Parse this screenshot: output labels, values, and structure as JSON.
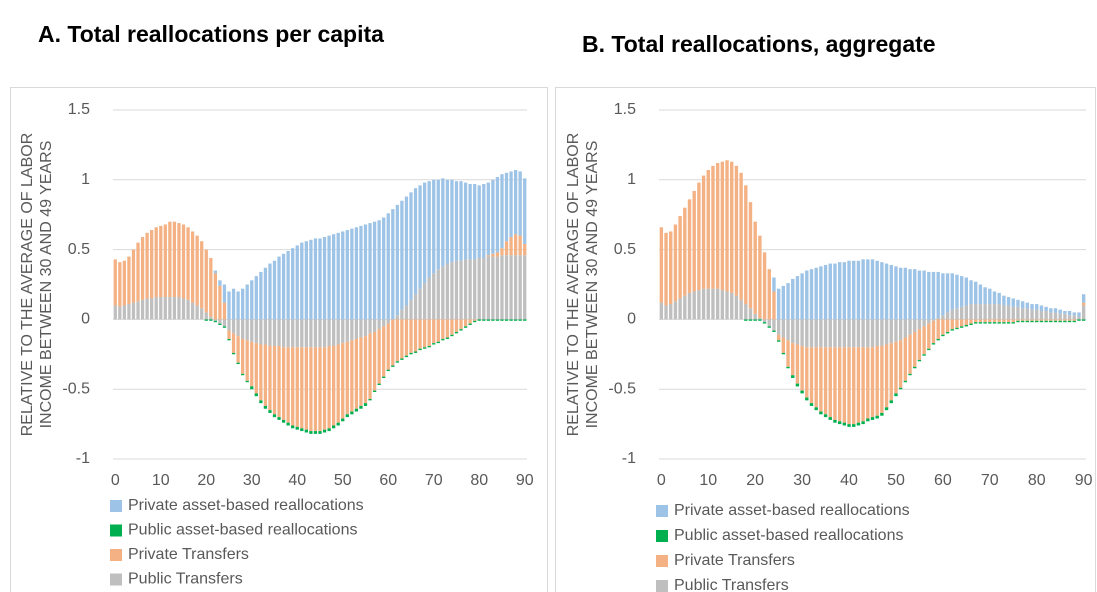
{
  "chart_data": [
    {
      "type": "bar",
      "stacked": true,
      "title": "A. Total reallocations per capita",
      "ylabel": [
        "RELATIVE TO THE AVERAGE OF LABOR",
        "INCOME BETWEEN 30 AND 49 YEARS"
      ],
      "x": [
        0,
        1,
        2,
        3,
        4,
        5,
        6,
        7,
        8,
        9,
        10,
        11,
        12,
        13,
        14,
        15,
        16,
        17,
        18,
        19,
        20,
        21,
        22,
        23,
        24,
        25,
        26,
        27,
        28,
        29,
        30,
        31,
        32,
        33,
        34,
        35,
        36,
        37,
        38,
        39,
        40,
        41,
        42,
        43,
        44,
        45,
        46,
        47,
        48,
        49,
        50,
        51,
        52,
        53,
        54,
        55,
        56,
        57,
        58,
        59,
        60,
        61,
        62,
        63,
        64,
        65,
        66,
        67,
        68,
        69,
        70,
        71,
        72,
        73,
        74,
        75,
        76,
        77,
        78,
        79,
        80,
        81,
        82,
        83,
        84,
        85,
        86,
        87,
        88,
        89,
        90
      ],
      "xlim": [
        -0.5,
        90.5
      ],
      "xticks": [
        0,
        10,
        20,
        30,
        40,
        50,
        60,
        70,
        80,
        90
      ],
      "ylim": [
        -1,
        1.5
      ],
      "yticks": [
        -1,
        -0.5,
        0,
        0.5,
        1,
        1.5
      ],
      "grid": true,
      "series": [
        {
          "name": "Private asset-based reallocations",
          "color": "#9dc3e6",
          "values": [
            0,
            0,
            0,
            0,
            0,
            0,
            0,
            0,
            0,
            0,
            0,
            0,
            0,
            0,
            0,
            0,
            0,
            0,
            0,
            0,
            0,
            0,
            0.02,
            0.04,
            0.13,
            0.2,
            0.22,
            0.2,
            0.22,
            0.25,
            0.28,
            0.31,
            0.34,
            0.37,
            0.4,
            0.42,
            0.45,
            0.47,
            0.49,
            0.51,
            0.53,
            0.55,
            0.56,
            0.57,
            0.58,
            0.58,
            0.59,
            0.6,
            0.61,
            0.62,
            0.63,
            0.64,
            0.65,
            0.66,
            0.67,
            0.68,
            0.69,
            0.7,
            0.71,
            0.73,
            0.76,
            0.79,
            0.79,
            0.78,
            0.78,
            0.77,
            0.76,
            0.74,
            0.72,
            0.69,
            0.67,
            0.64,
            0.63,
            0.6,
            0.59,
            0.57,
            0.57,
            0.55,
            0.54,
            0.54,
            0.52,
            0.53,
            0.52,
            0.53,
            0.54,
            0.53,
            0.49,
            0.47,
            0.46,
            0.46,
            0.47
          ]
        },
        {
          "name": "Public asset-based reallocations",
          "color": "#00b050",
          "values": [
            0,
            0,
            0,
            0,
            0,
            0,
            0,
            0,
            0,
            0,
            0,
            0,
            0,
            0,
            0,
            0,
            0,
            0,
            0,
            0,
            -0.01,
            -0.01,
            -0.01,
            -0.01,
            -0.01,
            -0.01,
            -0.01,
            -0.01,
            -0.01,
            -0.01,
            -0.02,
            -0.02,
            -0.02,
            -0.02,
            -0.02,
            -0.02,
            -0.02,
            -0.02,
            -0.02,
            -0.02,
            -0.02,
            -0.02,
            -0.02,
            -0.02,
            -0.02,
            -0.02,
            -0.02,
            -0.02,
            -0.02,
            -0.02,
            -0.02,
            -0.02,
            -0.02,
            -0.02,
            -0.02,
            -0.02,
            -0.01,
            -0.01,
            -0.01,
            -0.01,
            -0.01,
            -0.01,
            -0.01,
            -0.01,
            -0.01,
            -0.01,
            -0.01,
            -0.01,
            -0.01,
            -0.01,
            -0.01,
            -0.01,
            -0.01,
            -0.01,
            -0.01,
            -0.01,
            -0.01,
            -0.01,
            -0.01,
            -0.01,
            -0.01,
            -0.01,
            -0.01,
            -0.01,
            -0.01,
            -0.01,
            -0.01,
            -0.01,
            -0.01,
            -0.01,
            -0.01
          ]
        },
        {
          "name": "Private Transfers",
          "color": "#f4b183",
          "values": [
            0.33,
            0.32,
            0.32,
            0.34,
            0.38,
            0.42,
            0.45,
            0.47,
            0.49,
            0.5,
            0.51,
            0.52,
            0.54,
            0.54,
            0.53,
            0.53,
            0.52,
            0.51,
            0.5,
            0.48,
            0.45,
            0.42,
            0.33,
            0.24,
            0.12,
            -0.06,
            -0.14,
            -0.19,
            -0.25,
            -0.29,
            -0.32,
            -0.36,
            -0.4,
            -0.44,
            -0.46,
            -0.49,
            -0.51,
            -0.52,
            -0.54,
            -0.56,
            -0.57,
            -0.58,
            -0.59,
            -0.6,
            -0.6,
            -0.6,
            -0.59,
            -0.59,
            -0.57,
            -0.56,
            -0.54,
            -0.52,
            -0.51,
            -0.5,
            -0.49,
            -0.48,
            -0.47,
            -0.42,
            -0.39,
            -0.36,
            -0.33,
            -0.33,
            -0.3,
            -0.28,
            -0.26,
            -0.24,
            -0.23,
            -0.21,
            -0.2,
            -0.19,
            -0.17,
            -0.16,
            -0.14,
            -0.13,
            -0.11,
            -0.09,
            -0.07,
            -0.05,
            -0.03,
            -0.01,
            0,
            0,
            0.01,
            0.02,
            0.03,
            0.05,
            0.1,
            0.13,
            0.15,
            0.14,
            0.08
          ]
        },
        {
          "name": "Public Transfers",
          "color": "#bfbfbf",
          "values": [
            0.1,
            0.09,
            0.1,
            0.11,
            0.12,
            0.13,
            0.14,
            0.15,
            0.15,
            0.16,
            0.16,
            0.16,
            0.16,
            0.16,
            0.16,
            0.15,
            0.14,
            0.12,
            0.1,
            0.08,
            0.05,
            0.02,
            -0.01,
            -0.03,
            -0.05,
            -0.08,
            -0.1,
            -0.12,
            -0.14,
            -0.15,
            -0.16,
            -0.17,
            -0.18,
            -0.18,
            -0.19,
            -0.19,
            -0.19,
            -0.2,
            -0.2,
            -0.2,
            -0.2,
            -0.2,
            -0.2,
            -0.2,
            -0.2,
            -0.2,
            -0.2,
            -0.19,
            -0.19,
            -0.18,
            -0.17,
            -0.16,
            -0.15,
            -0.14,
            -0.13,
            -0.12,
            -0.1,
            -0.09,
            -0.07,
            -0.05,
            -0.03,
            0,
            0.03,
            0.07,
            0.1,
            0.14,
            0.18,
            0.22,
            0.26,
            0.3,
            0.33,
            0.36,
            0.38,
            0.4,
            0.41,
            0.42,
            0.42,
            0.43,
            0.43,
            0.43,
            0.44,
            0.44,
            0.45,
            0.45,
            0.45,
            0.46,
            0.46,
            0.46,
            0.46,
            0.46,
            0.46
          ]
        }
      ]
    },
    {
      "type": "bar",
      "stacked": true,
      "title": "B. Total reallocations, aggregate",
      "ylabel": [
        "RELATIVE TO THE AVERAGE OF LABOR",
        "INCOME BETWEEN 30 AND 49 YEARS"
      ],
      "x": [
        0,
        1,
        2,
        3,
        4,
        5,
        6,
        7,
        8,
        9,
        10,
        11,
        12,
        13,
        14,
        15,
        16,
        17,
        18,
        19,
        20,
        21,
        22,
        23,
        24,
        25,
        26,
        27,
        28,
        29,
        30,
        31,
        32,
        33,
        34,
        35,
        36,
        37,
        38,
        39,
        40,
        41,
        42,
        43,
        44,
        45,
        46,
        47,
        48,
        49,
        50,
        51,
        52,
        53,
        54,
        55,
        56,
        57,
        58,
        59,
        60,
        61,
        62,
        63,
        64,
        65,
        66,
        67,
        68,
        69,
        70,
        71,
        72,
        73,
        74,
        75,
        76,
        77,
        78,
        79,
        80,
        81,
        82,
        83,
        84,
        85,
        86,
        87,
        88,
        89,
        90
      ],
      "xlim": [
        -0.5,
        90.5
      ],
      "xticks": [
        0,
        10,
        20,
        30,
        40,
        50,
        60,
        70,
        80,
        90
      ],
      "ylim": [
        -1,
        1.5
      ],
      "yticks": [
        -1,
        -0.5,
        0,
        0.5,
        1,
        1.5
      ],
      "grid": true,
      "series": [
        {
          "name": "Private asset-based reallocations",
          "color": "#9dc3e6",
          "values": [
            0,
            0,
            0,
            0,
            0,
            0,
            0,
            0,
            0,
            0,
            0,
            0,
            0,
            0,
            0,
            0,
            0,
            0,
            0,
            0,
            0,
            0,
            0,
            0,
            0.1,
            0.22,
            0.24,
            0.26,
            0.29,
            0.31,
            0.33,
            0.35,
            0.36,
            0.37,
            0.38,
            0.39,
            0.4,
            0.4,
            0.41,
            0.41,
            0.42,
            0.42,
            0.42,
            0.43,
            0.43,
            0.43,
            0.42,
            0.41,
            0.4,
            0.39,
            0.38,
            0.37,
            0.37,
            0.36,
            0.36,
            0.35,
            0.35,
            0.34,
            0.34,
            0.33,
            0.3,
            0.28,
            0.26,
            0.24,
            0.22,
            0.2,
            0.17,
            0.16,
            0.14,
            0.12,
            0.11,
            0.09,
            0.08,
            0.07,
            0.06,
            0.06,
            0.05,
            0.05,
            0.04,
            0.04,
            0.04,
            0.04,
            0.03,
            0.03,
            0.03,
            0.03,
            0.02,
            0.03,
            0.02,
            0.03,
            0.06
          ]
        },
        {
          "name": "Public asset-based reallocations",
          "color": "#00b050",
          "values": [
            0,
            0,
            0,
            0,
            0,
            0,
            0,
            0,
            0,
            0,
            0,
            0,
            0,
            0,
            0,
            0,
            0,
            0,
            -0.01,
            -0.01,
            -0.01,
            -0.01,
            -0.01,
            -0.01,
            -0.01,
            -0.01,
            -0.01,
            -0.01,
            -0.02,
            -0.02,
            -0.02,
            -0.02,
            -0.02,
            -0.02,
            -0.02,
            -0.02,
            -0.02,
            -0.02,
            -0.02,
            -0.02,
            -0.02,
            -0.02,
            -0.02,
            -0.02,
            -0.02,
            -0.02,
            -0.02,
            -0.02,
            -0.02,
            -0.02,
            -0.02,
            -0.01,
            -0.01,
            -0.01,
            -0.01,
            -0.01,
            -0.01,
            -0.01,
            -0.01,
            -0.01,
            -0.01,
            -0.01,
            -0.01,
            -0.01,
            -0.01,
            -0.01,
            -0.01,
            -0.01,
            -0.01,
            -0.01,
            -0.01,
            -0.01,
            -0.01,
            -0.01,
            -0.01,
            -0.01,
            -0.01,
            -0.01,
            -0.01,
            -0.01,
            -0.01,
            -0.01,
            -0.01,
            -0.01,
            -0.01,
            -0.01,
            -0.01,
            -0.01,
            -0.01,
            -0.01,
            -0.01
          ]
        },
        {
          "name": "Private Transfers",
          "color": "#f4b183",
          "values": [
            0.54,
            0.52,
            0.52,
            0.55,
            0.59,
            0.63,
            0.67,
            0.72,
            0.77,
            0.81,
            0.85,
            0.88,
            0.9,
            0.92,
            0.94,
            0.94,
            0.93,
            0.91,
            0.85,
            0.76,
            0.66,
            0.59,
            0.48,
            0.36,
            0.2,
            -0.04,
            -0.11,
            -0.19,
            -0.23,
            -0.28,
            -0.32,
            -0.36,
            -0.4,
            -0.43,
            -0.46,
            -0.48,
            -0.5,
            -0.52,
            -0.53,
            -0.54,
            -0.55,
            -0.55,
            -0.54,
            -0.53,
            -0.51,
            -0.5,
            -0.5,
            -0.48,
            -0.45,
            -0.41,
            -0.37,
            -0.34,
            -0.31,
            -0.28,
            -0.25,
            -0.22,
            -0.2,
            -0.18,
            -0.16,
            -0.14,
            -0.11,
            -0.09,
            -0.07,
            -0.06,
            -0.05,
            -0.04,
            -0.03,
            -0.02,
            -0.02,
            -0.02,
            -0.02,
            -0.02,
            -0.02,
            -0.02,
            -0.02,
            -0.02,
            -0.01,
            -0.01,
            -0.01,
            -0.01,
            -0.01,
            -0.01,
            -0.01,
            -0.01,
            -0.01,
            -0.01,
            -0.01,
            -0.01,
            -0.01,
            0,
            0.02
          ]
        },
        {
          "name": "Public Transfers",
          "color": "#bfbfbf",
          "values": [
            0.12,
            0.1,
            0.11,
            0.13,
            0.15,
            0.17,
            0.19,
            0.2,
            0.21,
            0.22,
            0.22,
            0.22,
            0.22,
            0.21,
            0.2,
            0.19,
            0.17,
            0.14,
            0.11,
            0.08,
            0.04,
            0.01,
            -0.02,
            -0.05,
            -0.08,
            -0.11,
            -0.13,
            -0.15,
            -0.17,
            -0.18,
            -0.19,
            -0.2,
            -0.2,
            -0.2,
            -0.2,
            -0.2,
            -0.2,
            -0.2,
            -0.2,
            -0.2,
            -0.2,
            -0.2,
            -0.2,
            -0.2,
            -0.2,
            -0.2,
            -0.19,
            -0.19,
            -0.18,
            -0.17,
            -0.16,
            -0.15,
            -0.13,
            -0.11,
            -0.09,
            -0.07,
            -0.05,
            -0.03,
            -0.01,
            0.01,
            0.03,
            0.05,
            0.07,
            0.08,
            0.09,
            0.1,
            0.11,
            0.11,
            0.11,
            0.11,
            0.11,
            0.11,
            0.11,
            0.1,
            0.1,
            0.09,
            0.09,
            0.08,
            0.08,
            0.07,
            0.07,
            0.06,
            0.06,
            0.05,
            0.05,
            0.04,
            0.04,
            0.03,
            0.03,
            0.02,
            0.1
          ]
        }
      ]
    }
  ]
}
